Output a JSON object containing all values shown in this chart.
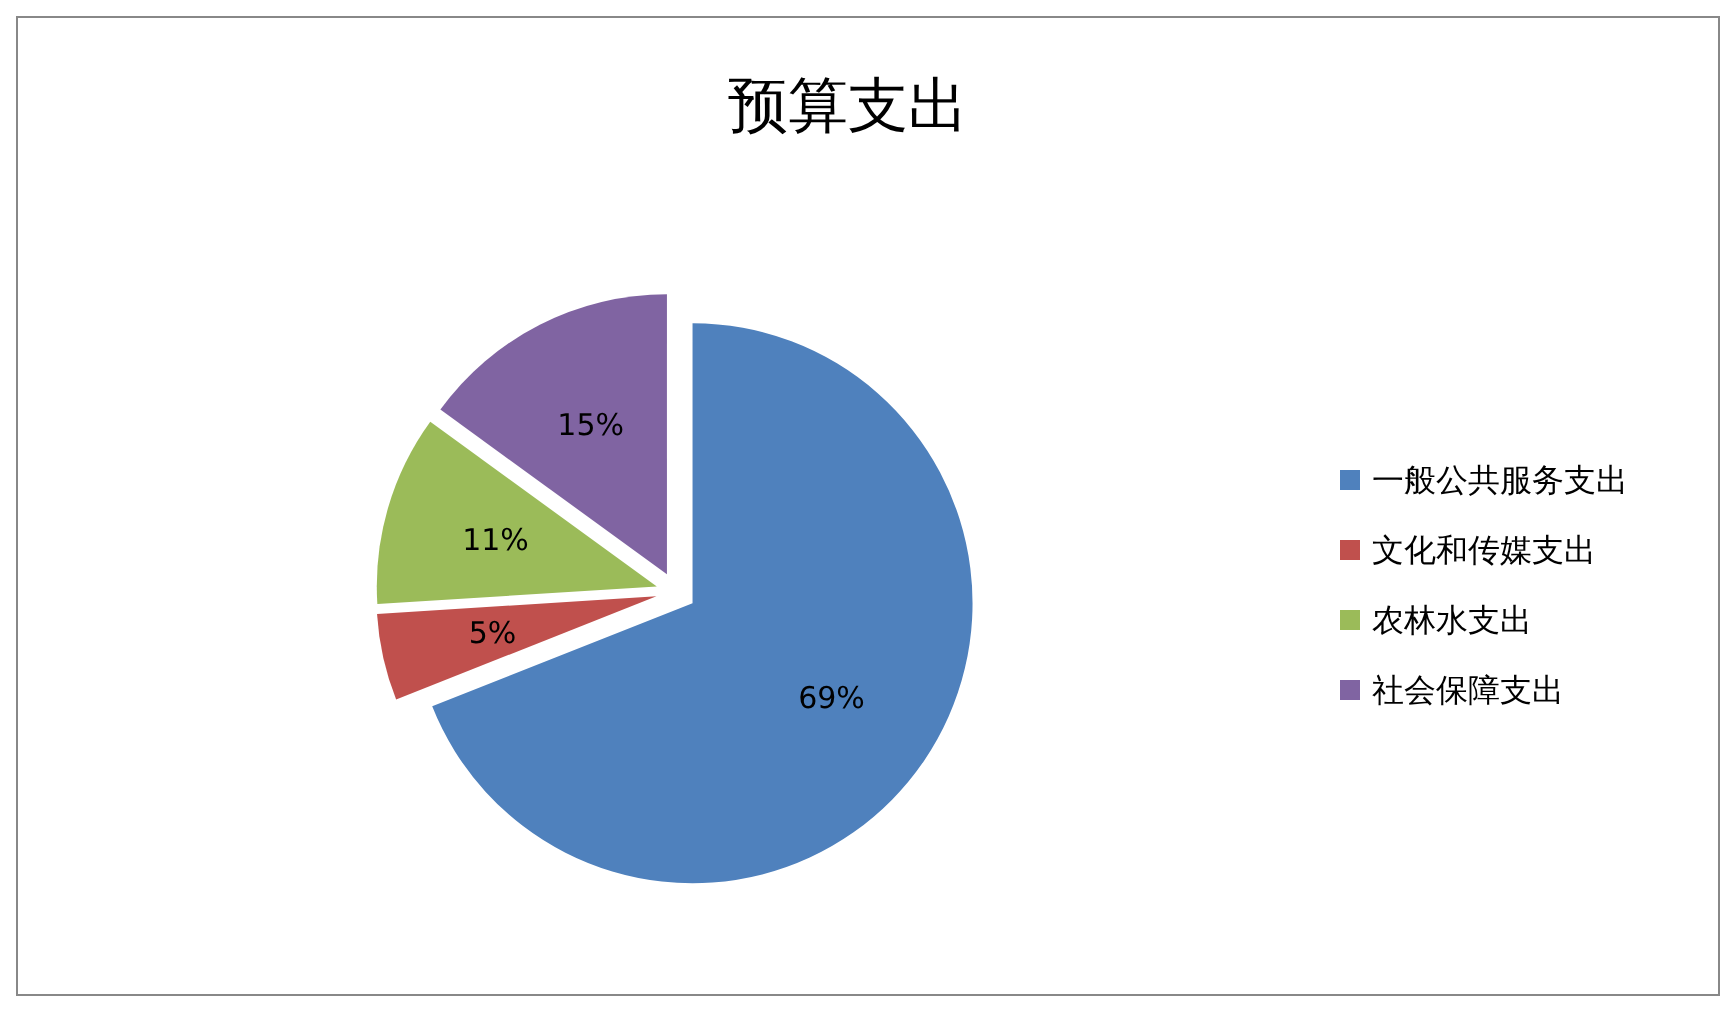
{
  "chart_data": {
    "type": "pie",
    "title": "预算支出",
    "categories": [
      "一般公共服务支出",
      "文化和传媒支出",
      "农林水支出",
      "社会保障支出"
    ],
    "values": [
      69,
      5,
      11,
      15
    ],
    "colors": [
      "#4f81bd",
      "#c0504d",
      "#9bbb59",
      "#8064a2"
    ],
    "value_labels": [
      "69%",
      "5%",
      "11%",
      "15%"
    ],
    "legend": "right"
  }
}
